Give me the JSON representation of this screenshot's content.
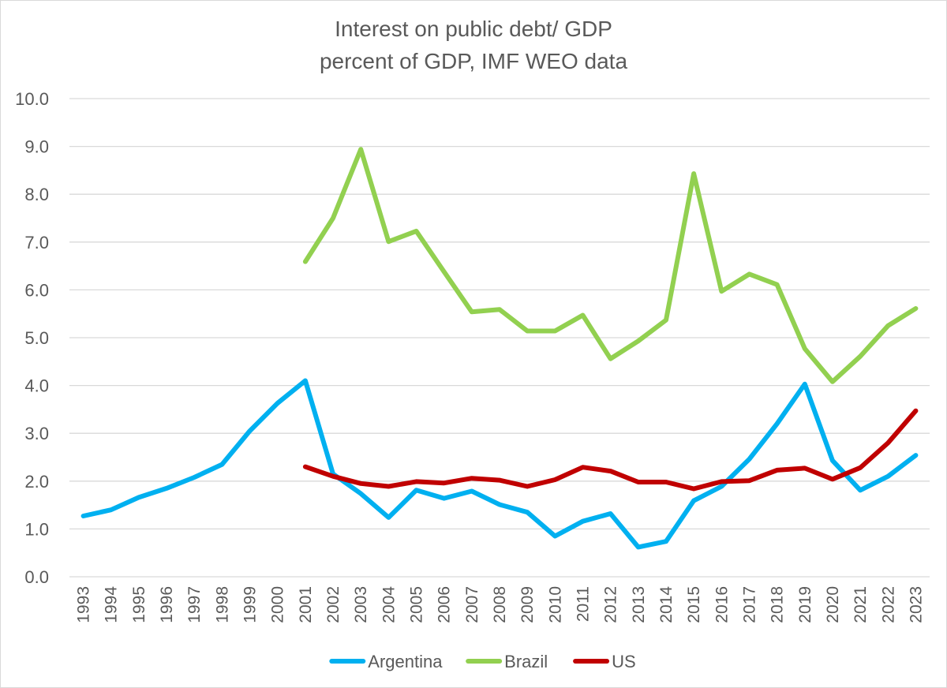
{
  "chart_data": {
    "type": "line",
    "title": "Interest on public debt/ GDP",
    "subtitle": "percent of GDP, IMF WEO data",
    "xlabel": "",
    "ylabel": "",
    "ylim": [
      0,
      10
    ],
    "yticks": [
      "0.0",
      "1.0",
      "2.0",
      "3.0",
      "4.0",
      "5.0",
      "6.0",
      "7.0",
      "8.0",
      "9.0",
      "10.0"
    ],
    "grid": true,
    "legend_position": "bottom",
    "categories": [
      "1993",
      "1994",
      "1995",
      "1996",
      "1997",
      "1998",
      "1999",
      "2000",
      "2001",
      "2002",
      "2003",
      "2004",
      "2005",
      "2006",
      "2007",
      "2008",
      "2009",
      "2010",
      "2011",
      "2012",
      "2013",
      "2014",
      "2015",
      "2016",
      "2017",
      "2018",
      "2019",
      "2020",
      "2021",
      "2022",
      "2023"
    ],
    "series": [
      {
        "name": "Argentina",
        "color": "#00b0f0",
        "values": [
          1.27,
          1.4,
          1.66,
          1.85,
          2.08,
          2.35,
          3.05,
          3.63,
          4.1,
          2.15,
          1.74,
          1.24,
          1.81,
          1.64,
          1.79,
          1.51,
          1.35,
          0.85,
          1.16,
          1.32,
          0.62,
          0.74,
          1.59,
          1.89,
          2.46,
          3.2,
          4.03,
          2.43,
          1.81,
          2.1,
          2.54
        ]
      },
      {
        "name": "Brazil",
        "color": "#92d050",
        "values": [
          null,
          null,
          null,
          null,
          null,
          null,
          null,
          null,
          6.59,
          7.5,
          8.94,
          7.01,
          7.23,
          6.38,
          5.54,
          5.59,
          5.14,
          5.14,
          5.47,
          4.56,
          4.93,
          5.37,
          8.43,
          5.97,
          6.33,
          6.11,
          4.77,
          4.08,
          4.61,
          5.25,
          5.61
        ]
      },
      {
        "name": "US",
        "color": "#c00000",
        "values": [
          null,
          null,
          null,
          null,
          null,
          null,
          null,
          null,
          2.3,
          2.1,
          1.95,
          1.89,
          1.99,
          1.96,
          2.06,
          2.02,
          1.89,
          2.03,
          2.29,
          2.21,
          1.98,
          1.98,
          1.84,
          1.99,
          2.01,
          2.23,
          2.27,
          2.04,
          2.28,
          2.8,
          3.47
        ]
      }
    ]
  }
}
